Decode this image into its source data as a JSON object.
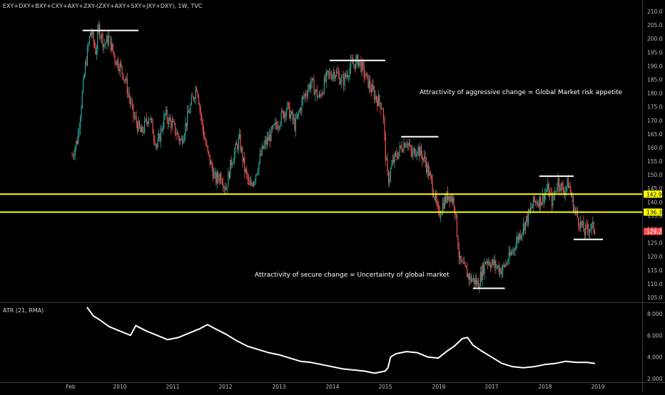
{
  "chart_data": [
    {
      "type": "candlestick",
      "title": "EXY+DXY+BXY+CXY+AXY+ZXY-(ZXY+AXY+SXY+JXY+DXY), 1W, TVC",
      "x_ticks": [
        "Feb",
        "2010",
        "2011",
        "2012",
        "2013",
        "2014",
        "2015",
        "2016",
        "2017",
        "2018",
        "2019"
      ],
      "y_ticks": [
        "210.0",
        "205.0",
        "200.0",
        "195.0",
        "190.0",
        "185.0",
        "180.0",
        "175.0",
        "170.0",
        "165.0",
        "160.0",
        "155.0",
        "150.0",
        "145.0",
        "140.0",
        "135.0",
        "130.0",
        "125.0",
        "120.0",
        "115.0",
        "110.0",
        "105.0"
      ],
      "ylim": [
        103,
        211
      ],
      "close_path": [
        [
          2009.1,
          157
        ],
        [
          2009.2,
          163
        ],
        [
          2009.35,
          190
        ],
        [
          2009.45,
          203
        ],
        [
          2009.55,
          195
        ],
        [
          2009.6,
          204
        ],
        [
          2009.7,
          198
        ],
        [
          2009.8,
          200
        ],
        [
          2009.9,
          193
        ],
        [
          2010.0,
          190
        ],
        [
          2010.1,
          185
        ],
        [
          2010.25,
          172
        ],
        [
          2010.4,
          165
        ],
        [
          2010.55,
          172
        ],
        [
          2010.7,
          160
        ],
        [
          2010.85,
          172
        ],
        [
          2011.0,
          168
        ],
        [
          2011.15,
          162
        ],
        [
          2011.3,
          173
        ],
        [
          2011.45,
          183
        ],
        [
          2011.55,
          168
        ],
        [
          2011.65,
          158
        ],
        [
          2011.8,
          148
        ],
        [
          2011.9,
          150
        ],
        [
          2012.0,
          145
        ],
        [
          2012.1,
          155
        ],
        [
          2012.25,
          163
        ],
        [
          2012.35,
          152
        ],
        [
          2012.45,
          145
        ],
        [
          2012.55,
          150
        ],
        [
          2012.7,
          160
        ],
        [
          2012.85,
          165
        ],
        [
          2013.0,
          170
        ],
        [
          2013.15,
          175
        ],
        [
          2013.3,
          168
        ],
        [
          2013.45,
          178
        ],
        [
          2013.6,
          184
        ],
        [
          2013.75,
          178
        ],
        [
          2013.9,
          186
        ],
        [
          2014.05,
          188
        ],
        [
          2014.2,
          184
        ],
        [
          2014.35,
          190
        ],
        [
          2014.5,
          192
        ],
        [
          2014.65,
          185
        ],
        [
          2014.8,
          179
        ],
        [
          2014.95,
          175
        ],
        [
          2015.0,
          158
        ],
        [
          2015.05,
          148
        ],
        [
          2015.15,
          155
        ],
        [
          2015.3,
          160
        ],
        [
          2015.4,
          163
        ],
        [
          2015.5,
          157
        ],
        [
          2015.6,
          160
        ],
        [
          2015.75,
          155
        ],
        [
          2015.9,
          145
        ],
        [
          2016.0,
          135
        ],
        [
          2016.1,
          140
        ],
        [
          2016.2,
          143
        ],
        [
          2016.3,
          140
        ],
        [
          2016.4,
          118
        ],
        [
          2016.5,
          115
        ],
        [
          2016.6,
          112
        ],
        [
          2016.75,
          110
        ],
        [
          2016.9,
          119
        ],
        [
          2017.05,
          117
        ],
        [
          2017.2,
          115
        ],
        [
          2017.35,
          120
        ],
        [
          2017.5,
          127
        ],
        [
          2017.65,
          133
        ],
        [
          2017.8,
          140
        ],
        [
          2017.95,
          141
        ],
        [
          2018.05,
          145
        ],
        [
          2018.15,
          140
        ],
        [
          2018.25,
          148
        ],
        [
          2018.35,
          144
        ],
        [
          2018.45,
          147
        ],
        [
          2018.55,
          138
        ],
        [
          2018.65,
          133
        ],
        [
          2018.75,
          129
        ],
        [
          2018.85,
          131
        ],
        [
          2018.95,
          130
        ]
      ],
      "levels": [
        {
          "value": 142.9,
          "label": "142.9",
          "color": "#ffff00"
        },
        {
          "value": 136.3,
          "label": "136.3",
          "color": "#ffff00"
        }
      ],
      "last_price": {
        "value": 129.2,
        "label": "129.2",
        "color": "#ff4d4d"
      },
      "trendlines": [
        {
          "x1": 2009.3,
          "x2": 2010.35,
          "y": 203.0
        },
        {
          "x1": 2013.95,
          "x2": 2015.0,
          "y": 192.0
        },
        {
          "x1": 2015.3,
          "x2": 2016.0,
          "y": 164.0
        },
        {
          "x1": 2016.65,
          "x2": 2017.25,
          "y": 108.3
        },
        {
          "x1": 2018.55,
          "x2": 2019.1,
          "y": 126.3
        },
        {
          "x1": 2017.9,
          "x2": 2018.55,
          "y": 149.5
        }
      ],
      "annotations": [
        "Attractivity of aggressive change = Global Market risk appetite",
        "Attractivity of secure change = Uncertainty of global market"
      ],
      "up_color": "#26a69a",
      "down_color": "#ef5350"
    },
    {
      "type": "line",
      "title": "ATR (21, RMA)",
      "y_ticks": [
        "8.000",
        "6.000",
        "4.000",
        "2.000"
      ],
      "ylim": [
        1.8,
        8.8
      ],
      "line_color": "#ffffff",
      "x": [
        2009.38,
        2009.5,
        2009.6,
        2009.8,
        2010.0,
        2010.2,
        2010.3,
        2010.5,
        2010.7,
        2010.9,
        2011.1,
        2011.3,
        2011.5,
        2011.65,
        2011.8,
        2012.0,
        2012.2,
        2012.4,
        2012.6,
        2012.8,
        2013.0,
        2013.2,
        2013.4,
        2013.6,
        2013.8,
        2014.0,
        2014.2,
        2014.4,
        2014.6,
        2014.8,
        2015.0,
        2015.05,
        2015.1,
        2015.2,
        2015.4,
        2015.6,
        2015.8,
        2016.0,
        2016.15,
        2016.3,
        2016.45,
        2016.55,
        2016.65,
        2016.8,
        2017.0,
        2017.2,
        2017.4,
        2017.6,
        2017.8,
        2018.0,
        2018.2,
        2018.4,
        2018.6,
        2018.8,
        2018.95
      ],
      "values": [
        8.6,
        7.8,
        7.5,
        6.8,
        6.4,
        6.0,
        6.9,
        6.4,
        6.0,
        5.6,
        5.8,
        6.2,
        6.6,
        7.0,
        6.6,
        6.1,
        5.5,
        5.0,
        4.7,
        4.4,
        4.2,
        3.9,
        3.6,
        3.5,
        3.3,
        3.1,
        2.9,
        2.8,
        2.7,
        2.5,
        2.7,
        3.0,
        4.0,
        4.3,
        4.5,
        4.4,
        4.0,
        3.9,
        4.5,
        5.0,
        5.7,
        5.8,
        5.1,
        4.6,
        4.0,
        3.4,
        3.1,
        3.0,
        3.1,
        3.3,
        3.4,
        3.6,
        3.5,
        3.5,
        3.4
      ]
    }
  ]
}
